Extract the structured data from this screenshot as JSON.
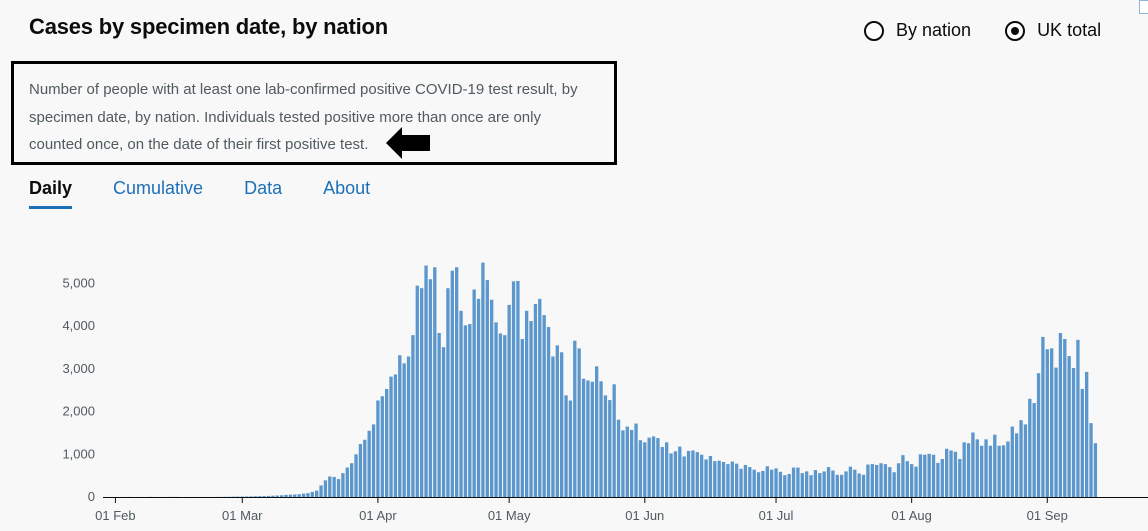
{
  "header": {
    "title": "Cases by specimen date, by nation",
    "options": [
      {
        "label": "By nation",
        "checked": false
      },
      {
        "label": "UK total",
        "checked": true
      }
    ]
  },
  "description": "Number of people with at least one lab-confirmed positive COVID-19 test result, by specimen date, by nation. Individuals tested positive more than once are only counted once, on the date of their first positive test.",
  "tabs": [
    {
      "label": "Daily",
      "active": true
    },
    {
      "label": "Cumulative",
      "active": false
    },
    {
      "label": "Data",
      "active": false
    },
    {
      "label": "About",
      "active": false
    }
  ],
  "colors": {
    "bar": "#5b97cc",
    "accent": "#1d70b8",
    "text": "#0b0c0c",
    "muted": "#505a5f"
  },
  "chart_data": {
    "type": "bar",
    "title": "",
    "xlabel": "",
    "ylabel": "",
    "start_date": "2020-01-30",
    "ylim": [
      0,
      5500
    ],
    "yticks": [
      0,
      1000,
      2000,
      3000,
      4000,
      5000
    ],
    "ytick_labels": [
      "0",
      "1,000",
      "2,000",
      "3,000",
      "4,000",
      "5,000"
    ],
    "xticks": [
      {
        "date": "2020-02-01",
        "label": "01 Feb"
      },
      {
        "date": "2020-03-01",
        "label": "01 Mar"
      },
      {
        "date": "2020-04-01",
        "label": "01 Apr"
      },
      {
        "date": "2020-05-01",
        "label": "01 May"
      },
      {
        "date": "2020-06-01",
        "label": "01 Jun"
      },
      {
        "date": "2020-07-01",
        "label": "01 Jul"
      },
      {
        "date": "2020-08-01",
        "label": "01 Aug"
      },
      {
        "date": "2020-09-01",
        "label": "01 Sep"
      }
    ],
    "grid": false,
    "legend": "none",
    "values": [
      2,
      0,
      1,
      0,
      0,
      2,
      0,
      0,
      1,
      0,
      3,
      2,
      0,
      0,
      2,
      3,
      3,
      0,
      0,
      0,
      1,
      0,
      1,
      1,
      0,
      2,
      3,
      5,
      5,
      8,
      10,
      12,
      12,
      15,
      18,
      20,
      22,
      25,
      30,
      35,
      40,
      50,
      55,
      60,
      65,
      80,
      90,
      120,
      150,
      270,
      390,
      480,
      470,
      420,
      560,
      690,
      790,
      1000,
      1240,
      1340,
      1550,
      1700,
      2260,
      2360,
      2530,
      2820,
      2870,
      3320,
      3130,
      3290,
      3790,
      4950,
      4890,
      5420,
      5100,
      5380,
      3840,
      3510,
      4890,
      5300,
      5380,
      4360,
      4020,
      4050,
      4860,
      4640,
      5490,
      5080,
      4620,
      4090,
      3830,
      3790,
      4500,
      5050,
      5060,
      3700,
      4360,
      4120,
      4520,
      4640,
      4260,
      3980,
      3290,
      3550,
      3390,
      2380,
      2260,
      3660,
      3480,
      2770,
      2730,
      2700,
      3060,
      2710,
      2380,
      2270,
      2640,
      1810,
      1560,
      1650,
      1570,
      1720,
      1330,
      1280,
      1390,
      1420,
      1380,
      1170,
      1280,
      1020,
      1070,
      1180,
      950,
      1080,
      1090,
      1050,
      990,
      880,
      960,
      840,
      850,
      820,
      770,
      830,
      780,
      660,
      750,
      700,
      640,
      580,
      610,
      720,
      640,
      670,
      590,
      510,
      540,
      690,
      690,
      560,
      600,
      510,
      630,
      560,
      600,
      700,
      620,
      520,
      520,
      600,
      710,
      640,
      550,
      520,
      760,
      770,
      750,
      790,
      770,
      700,
      580,
      790,
      980,
      840,
      770,
      710,
      1000,
      990,
      1010,
      990,
      800,
      890,
      1130,
      1090,
      1060,
      890,
      1280,
      1260,
      1510,
      1350,
      1200,
      1350,
      1200,
      1460,
      1200,
      1210,
      1300,
      1650,
      1490,
      1800,
      1700,
      2300,
      2200,
      2900,
      3750,
      3460,
      3480,
      3030,
      3840,
      3700,
      3300,
      3020,
      3680,
      2530,
      2930,
      1730,
      1260
    ]
  }
}
